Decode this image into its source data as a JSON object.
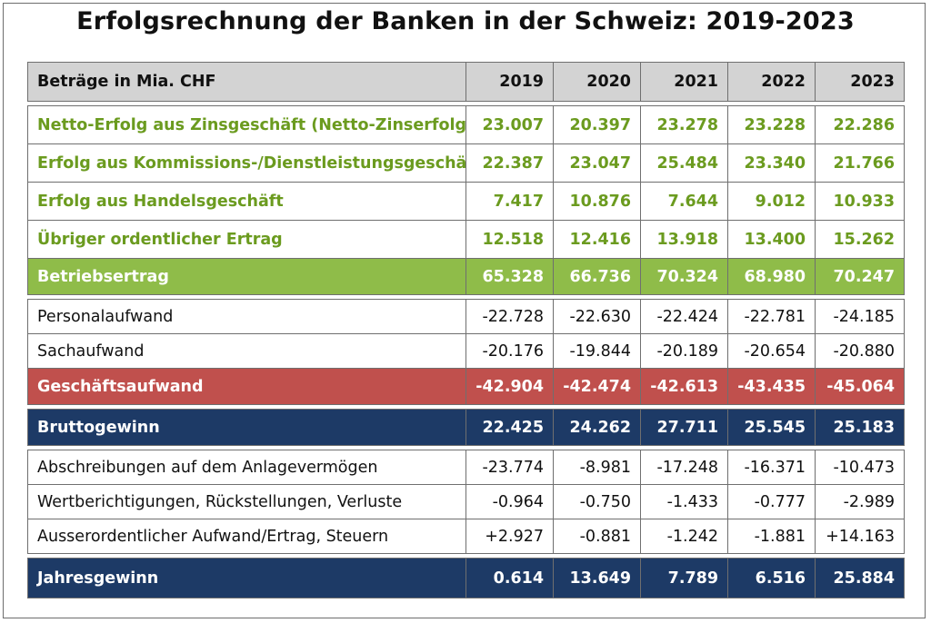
{
  "title": "Erfolgsrechnung der Banken in der Schweiz: 2019-2023",
  "colors": {
    "header_bg": "#d3d3d3",
    "green_text": "#6b9b1f",
    "green_total": "#8fbc49",
    "red_total": "#c0504d",
    "navy_total": "#1d3a66"
  },
  "table": {
    "header": {
      "label": "Beträge in Mia. CHF",
      "years": [
        "2019",
        "2020",
        "2021",
        "2022",
        "2023"
      ]
    },
    "rows": [
      {
        "label": "Netto-Erfolg aus Zinsgeschäft (Netto-Zinserfolg)",
        "values": [
          "23.007",
          "20.397",
          "23.278",
          "23.228",
          "22.286"
        ]
      },
      {
        "label": "Erfolg aus Kommissions-/Dienstleistungsgeschäft",
        "values": [
          "22.387",
          "23.047",
          "25.484",
          "23.340",
          "21.766"
        ]
      },
      {
        "label": "Erfolg aus Handelsgeschäft",
        "values": [
          "7.417",
          "10.876",
          "7.644",
          "9.012",
          "10.933"
        ]
      },
      {
        "label": "Übriger ordentlicher Ertrag",
        "values": [
          "12.518",
          "12.416",
          "13.918",
          "13.400",
          "15.262"
        ]
      },
      {
        "label": "Betriebsertrag",
        "values": [
          "65.328",
          "66.736",
          "70.324",
          "68.980",
          "70.247"
        ]
      },
      {
        "label": "Personalaufwand",
        "values": [
          "-22.728",
          "-22.630",
          "-22.424",
          "-22.781",
          "-24.185"
        ]
      },
      {
        "label": "Sachaufwand",
        "values": [
          "-20.176",
          "-19.844",
          "-20.189",
          "-20.654",
          "-20.880"
        ]
      },
      {
        "label": "Geschäftsaufwand",
        "values": [
          "-42.904",
          "-42.474",
          "-42.613",
          "-43.435",
          "-45.064"
        ]
      },
      {
        "label": "Bruttogewinn",
        "values": [
          "22.425",
          "24.262",
          "27.711",
          "25.545",
          "25.183"
        ]
      },
      {
        "label": "Abschreibungen auf dem Anlagevermögen",
        "values": [
          "-23.774",
          "-8.981",
          "-17.248",
          "-16.371",
          "-10.473"
        ]
      },
      {
        "label": "Wertberichtigungen, Rückstellungen, Verluste",
        "values": [
          "-0.964",
          "-0.750",
          "-1.433",
          "-0.777",
          "-2.989"
        ]
      },
      {
        "label": "Ausserordentlicher Aufwand/Ertrag, Steuern",
        "values": [
          "+2.927",
          "-0.881",
          "-1.242",
          "-1.881",
          "+14.163"
        ]
      },
      {
        "label": "Jahresgewinn",
        "values": [
          "0.614",
          "13.649",
          "7.789",
          "6.516",
          "25.884"
        ]
      }
    ]
  }
}
